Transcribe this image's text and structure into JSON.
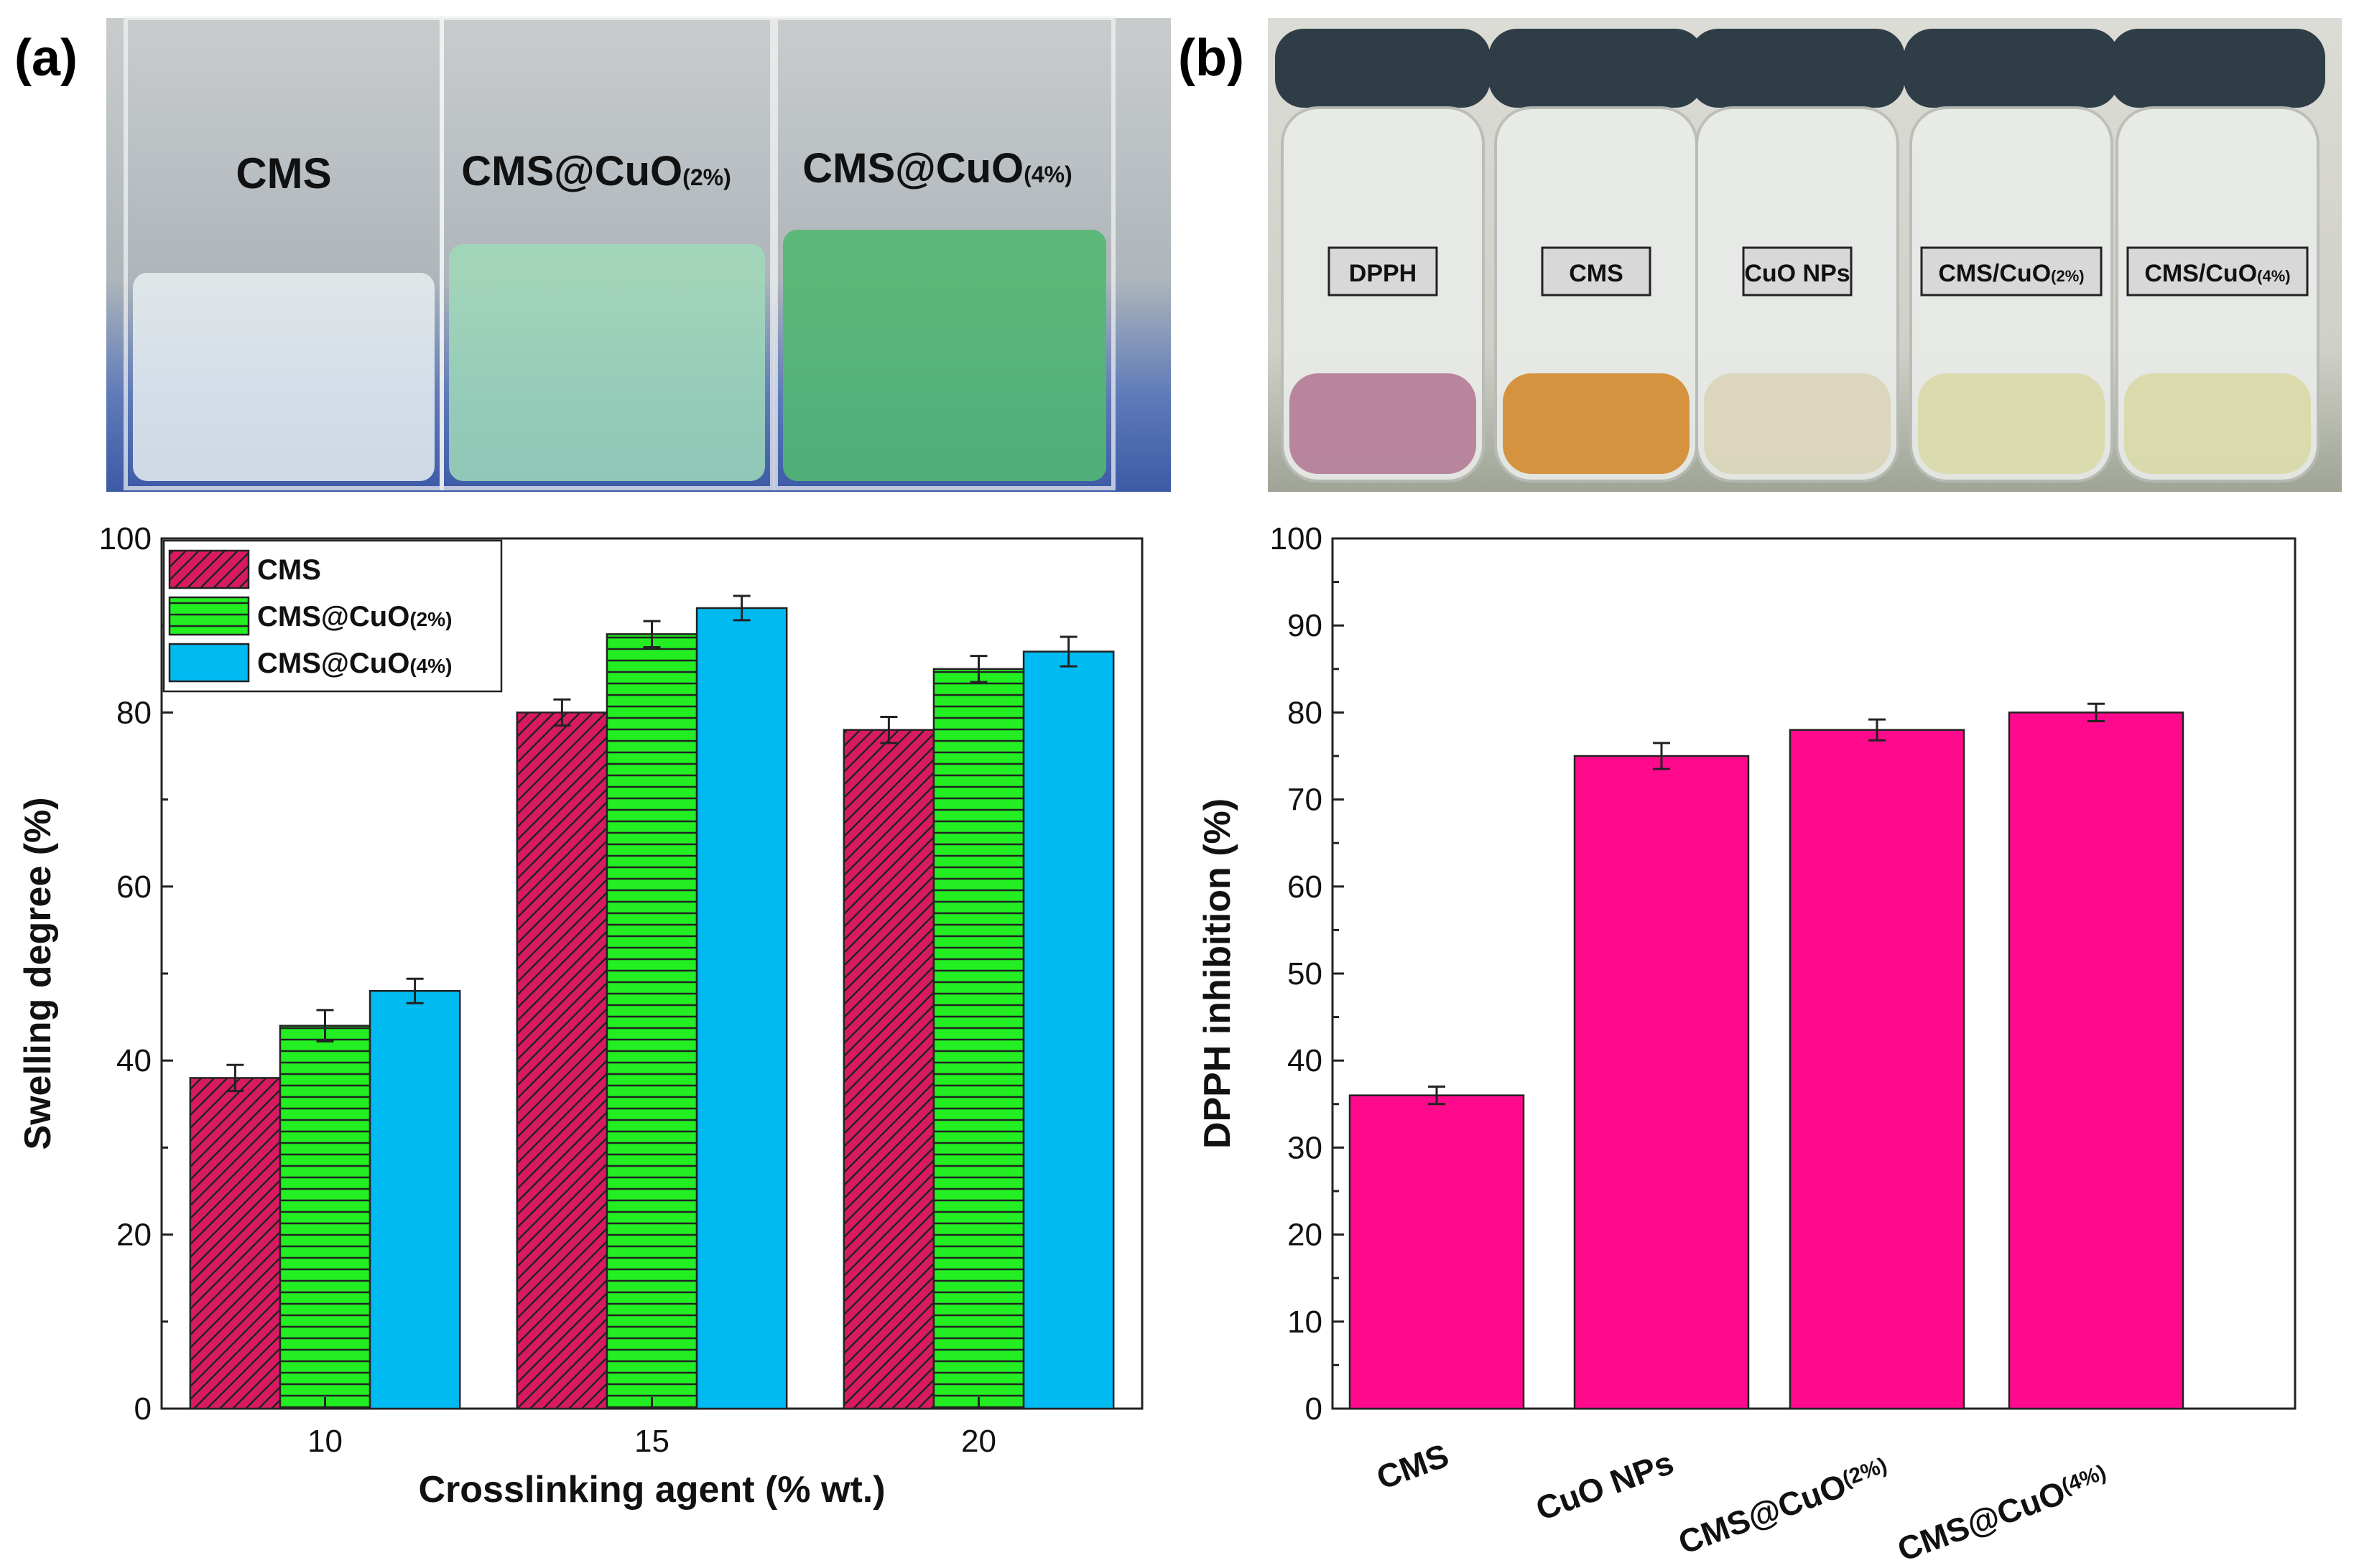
{
  "panels": {
    "a": {
      "label": "(a)",
      "photo_labels": [
        "CMS",
        "CMS@CuO",
        "CMS@CuO"
      ],
      "photo_label_subs": [
        "",
        "(2%)",
        "(4%)"
      ]
    },
    "b": {
      "label": "(b)",
      "vial_labels": [
        "DPPH",
        "CMS",
        "CuO NPs",
        "CMS/CuO",
        "CMS/CuO"
      ],
      "vial_label_subs": [
        "",
        "",
        "",
        "(2%)",
        "(4%)"
      ]
    }
  },
  "colors": {
    "cms": "#d81b60",
    "cuo2": "#22ee22",
    "cuo4": "#00baf2",
    "inhibition": "#ff0a8c"
  },
  "chart_data": [
    {
      "type": "bar",
      "categories": [
        "10",
        "15",
        "20"
      ],
      "series": [
        {
          "name": "CMS",
          "name_sub": "",
          "values": [
            38,
            80,
            78
          ],
          "errors": [
            1.5,
            1.5,
            1.5
          ],
          "color": "#d81b60",
          "pattern": "diagonal"
        },
        {
          "name": "CMS@CuO",
          "name_sub": "(2%)",
          "values": [
            44,
            89,
            85
          ],
          "errors": [
            1.8,
            1.5,
            1.5
          ],
          "color": "#22ee22",
          "pattern": "horizontal"
        },
        {
          "name": "CMS@CuO",
          "name_sub": "(4%)",
          "values": [
            48,
            92,
            87
          ],
          "errors": [
            1.4,
            1.4,
            1.7
          ],
          "color": "#00baf2",
          "pattern": "solid"
        }
      ],
      "xlabel": "Crosslinking agent (% wt.)",
      "ylabel": "Swelling degree (%)",
      "ylim": [
        0,
        100
      ],
      "yticks": [
        "0",
        "20",
        "40",
        "60",
        "80",
        "100"
      ],
      "legend": "top-left"
    },
    {
      "type": "bar",
      "categories": [
        "CMS",
        "CuO NPs",
        "CMS@CuO",
        "CMS@CuO"
      ],
      "category_subs": [
        "",
        "",
        "(2%)",
        "(4%)"
      ],
      "values": [
        36,
        75,
        78,
        80
      ],
      "errors": [
        1,
        1.5,
        1.2,
        1
      ],
      "color": "#ff0a8c",
      "ylabel": "DPPH inhibition (%)",
      "ylim": [
        0,
        100
      ],
      "yticks": [
        "0",
        "10",
        "20",
        "30",
        "40",
        "50",
        "60",
        "70",
        "80",
        "90",
        "100"
      ]
    }
  ]
}
